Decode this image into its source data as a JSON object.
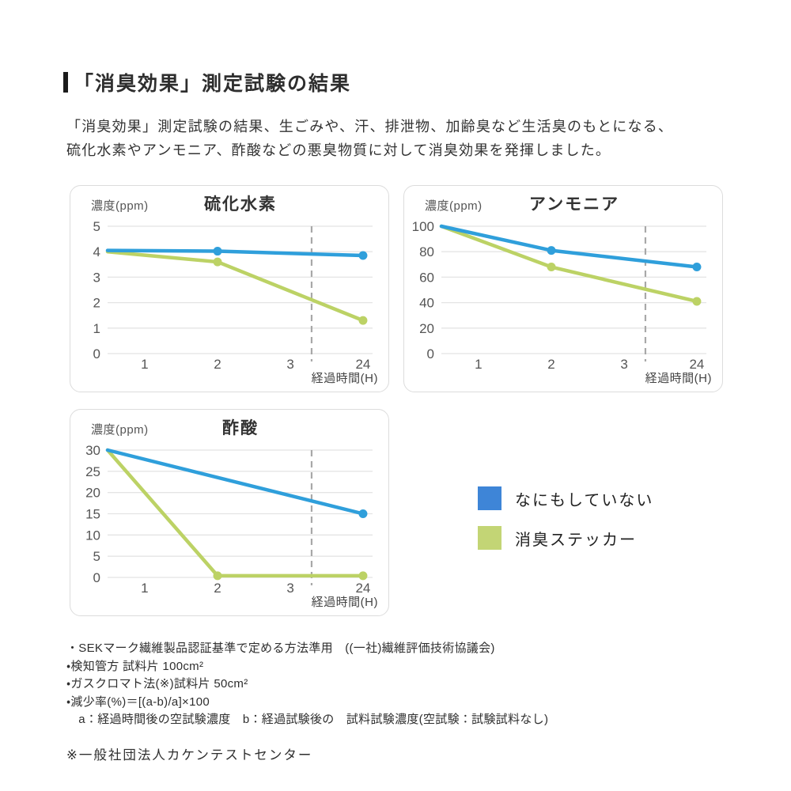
{
  "header": {
    "title": "「消臭効果」測定試験の結果"
  },
  "intro": {
    "line1": "「消臭効果」測定試験の結果、生ごみや、汗、排泄物、加齢臭など生活臭のもとになる、",
    "line2": "硫化水素やアンモニア、酢酸などの悪臭物質に対して消臭効果を発揮しました。"
  },
  "colors": {
    "blue": "#2f9fdb",
    "green": "#bcd265",
    "grid": "#e4e4e4",
    "dashed_line": "#a8a8a8",
    "axis_text": "#555555",
    "title_text": "#333333"
  },
  "legend": {
    "items": [
      {
        "label": "なにもしていない",
        "color": "#3e85d7"
      },
      {
        "label": "消臭ステッカー",
        "color": "#c3d575"
      }
    ]
  },
  "chart_data": [
    {
      "type": "line",
      "title": "硫化水素",
      "ylabel": "濃度(ppm)",
      "xlabel": "経過時間(H)",
      "x_ticks": [
        "1",
        "2",
        "3",
        "24"
      ],
      "y_ticks": [
        5,
        4,
        3,
        2,
        1,
        0
      ],
      "ylim": [
        0,
        5
      ],
      "grid": "horizontal",
      "dashed_marker": "between 3 and 24",
      "series": [
        {
          "name": "消臭ステッカー",
          "color": "green",
          "points": [
            {
              "x": "start",
              "y": 4.0
            },
            {
              "x": "2",
              "y": 3.6,
              "dot": true
            },
            {
              "x": "24",
              "y": 1.3,
              "dot": true
            }
          ]
        },
        {
          "name": "なにもしていない",
          "color": "blue",
          "points": [
            {
              "x": "start",
              "y": 4.05
            },
            {
              "x": "2",
              "y": 4.02,
              "dot": true
            },
            {
              "x": "24",
              "y": 3.85,
              "dot": true
            }
          ]
        }
      ]
    },
    {
      "type": "line",
      "title": "アンモニア",
      "ylabel": "濃度(ppm)",
      "xlabel": "経過時間(H)",
      "x_ticks": [
        "1",
        "2",
        "3",
        "24"
      ],
      "y_ticks": [
        100,
        80,
        60,
        40,
        20,
        0
      ],
      "ylim": [
        0,
        100
      ],
      "grid": "horizontal",
      "dashed_marker": "between 3 and 24",
      "series": [
        {
          "name": "消臭ステッカー",
          "color": "green",
          "points": [
            {
              "x": "start",
              "y": 100
            },
            {
              "x": "2",
              "y": 68,
              "dot": true
            },
            {
              "x": "24",
              "y": 41,
              "dot": true
            }
          ]
        },
        {
          "name": "なにもしていない",
          "color": "blue",
          "points": [
            {
              "x": "start",
              "y": 100
            },
            {
              "x": "2",
              "y": 81,
              "dot": true
            },
            {
              "x": "24",
              "y": 68,
              "dot": true
            }
          ]
        }
      ]
    },
    {
      "type": "line",
      "title": "酢酸",
      "ylabel": "濃度(ppm)",
      "xlabel": "経過時間(H)",
      "x_ticks": [
        "1",
        "2",
        "3",
        "24"
      ],
      "y_ticks": [
        30,
        25,
        20,
        15,
        10,
        5,
        0
      ],
      "ylim": [
        0,
        30
      ],
      "grid": "horizontal",
      "dashed_marker": "between 3 and 24",
      "series": [
        {
          "name": "消臭ステッカー",
          "color": "green",
          "points": [
            {
              "x": "start",
              "y": 30
            },
            {
              "x": "2",
              "y": 0.4,
              "dot": true
            },
            {
              "x": "24",
              "y": 0.4,
              "dot": true
            }
          ]
        },
        {
          "name": "なにもしていない",
          "color": "blue",
          "points": [
            {
              "x": "start",
              "y": 30
            },
            {
              "x": "24",
              "y": 15,
              "dot": true
            }
          ]
        }
      ]
    }
  ],
  "footnotes": [
    "・SEKマーク繊維製品認証基準で定める方法準用　((一社)繊維評価技術協議会)",
    "・検知管方 試料片 100cm²",
    "・ガスクロマト法(※)試料片 50cm²",
    "・減少率(%)＝[(a-b)/a]×100",
    "　a：経過時間後の空試験濃度　b：経過試験後の　試料試験濃度(空試験：試験試料なし)"
  ],
  "asterisk_note": "※一般社団法人カケンテストセンター"
}
